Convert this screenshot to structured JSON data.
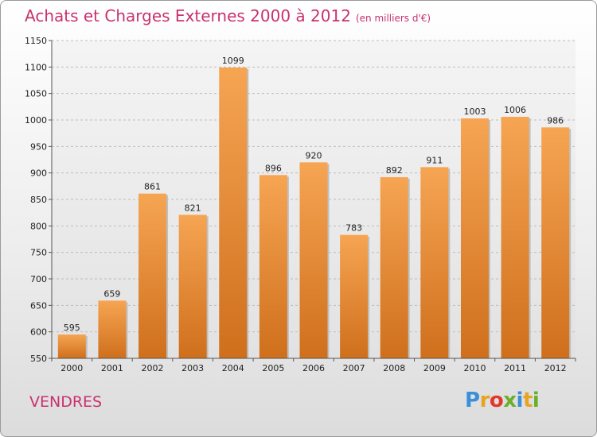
{
  "page": {
    "subtitle": "(en milliers d'€)",
    "place": "VENDRES"
  },
  "logo": {
    "p": "P",
    "r": "r",
    "o": "o",
    "x": "x",
    "i": "i",
    "t": "t",
    "i2": "i"
  },
  "colors": {
    "title": "#c8326e",
    "bar_top": "#f6a553",
    "bar_bottom": "#cf6f1c"
  },
  "chart_data": {
    "type": "bar",
    "title": "Achats et Charges Externes 2000 à 2012",
    "categories": [
      "2000",
      "2001",
      "2002",
      "2003",
      "2004",
      "2005",
      "2006",
      "2007",
      "2008",
      "2009",
      "2010",
      "2011",
      "2012"
    ],
    "values": [
      595,
      659,
      861,
      821,
      1099,
      896,
      920,
      783,
      892,
      911,
      1003,
      1006,
      986
    ],
    "value_labels": [
      "595",
      "659",
      "861",
      "821",
      "1099",
      "896",
      "920",
      "783",
      "892",
      "911",
      "1003",
      "1006",
      "986"
    ],
    "yticks": [
      "550",
      "600",
      "650",
      "700",
      "750",
      "800",
      "850",
      "900",
      "950",
      "1000",
      "1050",
      "1100",
      "1150"
    ],
    "ylim": [
      550,
      1150
    ],
    "grid": true,
    "xlabel": "",
    "ylabel": ""
  }
}
